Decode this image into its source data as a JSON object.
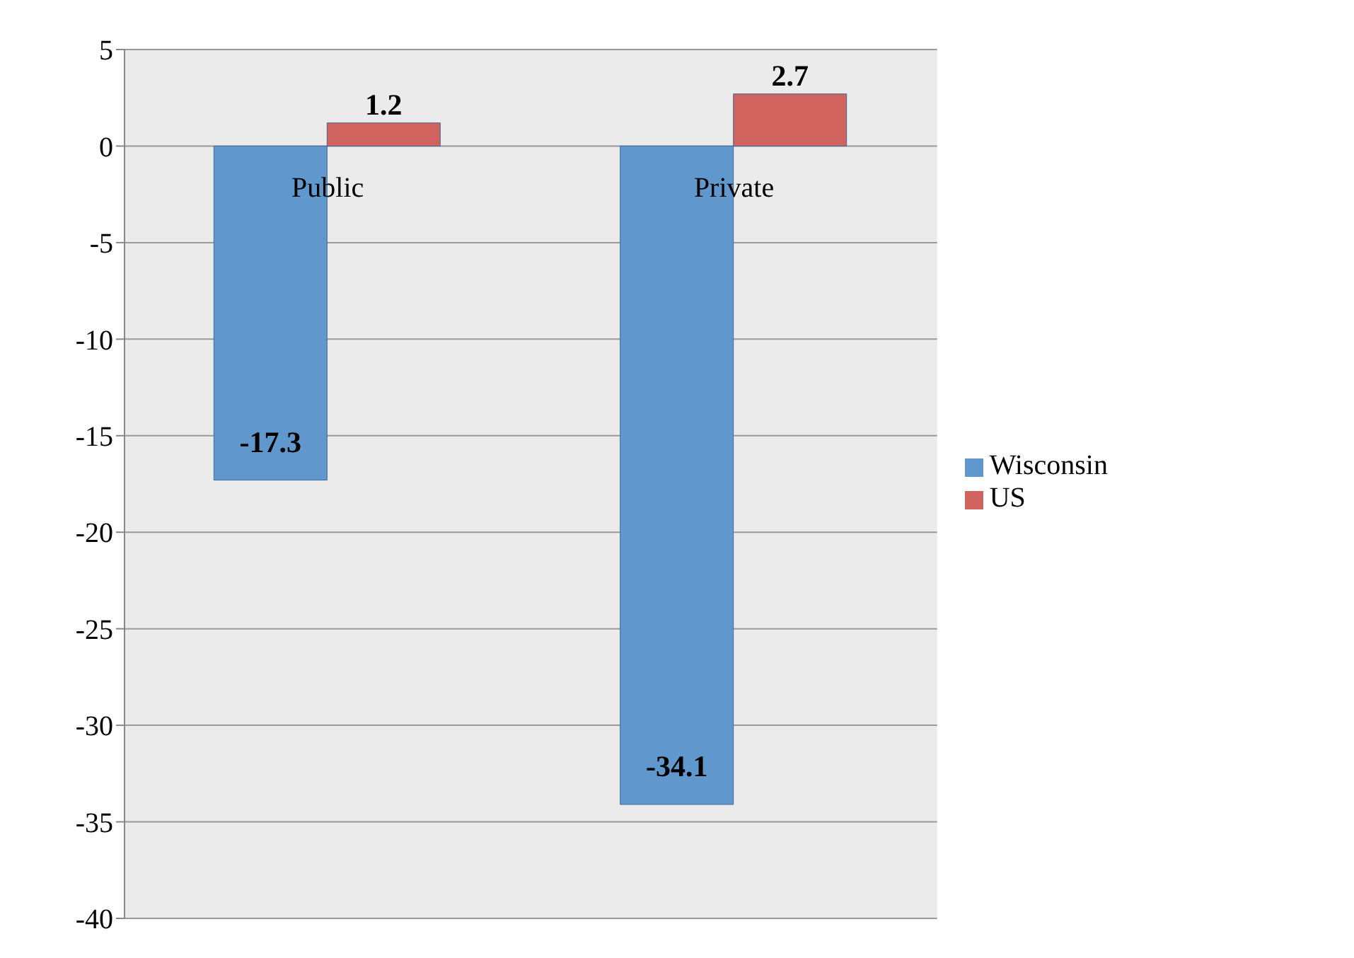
{
  "chart_data": {
    "type": "bar",
    "categories": [
      "Public",
      "Private"
    ],
    "series": [
      {
        "name": "Wisconsin",
        "color": "#6098cd",
        "values": [
          -17.3,
          -34.1
        ]
      },
      {
        "name": "US",
        "color": "#d0635e",
        "values": [
          1.2,
          2.7
        ]
      }
    ],
    "ylim": [
      -40,
      5
    ],
    "yticks": [
      5,
      0,
      -5,
      -10,
      -15,
      -20,
      -25,
      -30,
      -35,
      -40
    ],
    "grid": "y",
    "legend": "right",
    "data_labels": true
  }
}
